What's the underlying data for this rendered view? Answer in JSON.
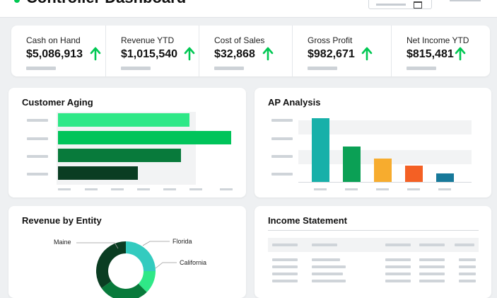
{
  "header": {
    "title": "Controller Dashboard"
  },
  "kpis": [
    {
      "label": "Cash on Hand",
      "value": "$5,086,913"
    },
    {
      "label": "Revenue YTD",
      "value": "$1,015,540"
    },
    {
      "label": "Cost of Sales",
      "value": "$32,868"
    },
    {
      "label": "Gross Profit",
      "value": "$982,671"
    },
    {
      "label": "Net Income YTD",
      "value": "$815,481"
    }
  ],
  "customer_aging": {
    "title": "Customer Aging",
    "bars": [
      {
        "value": 0.76,
        "color": "#2fe887"
      },
      {
        "value": 1.0,
        "color": "#00c45a"
      },
      {
        "value": 0.71,
        "color": "#087a3b"
      },
      {
        "value": 0.46,
        "color": "#0a3d22"
      }
    ]
  },
  "ap_analysis": {
    "title": "AP Analysis",
    "bars": [
      {
        "value": 1.0,
        "color": "#17b0a9"
      },
      {
        "value": 0.55,
        "color": "#0ba055"
      },
      {
        "value": 0.37,
        "color": "#f7ac2e"
      },
      {
        "value": 0.25,
        "color": "#f46024"
      },
      {
        "value": 0.13,
        "color": "#17799a"
      }
    ]
  },
  "revenue_by_entity": {
    "title": "Revenue by Entity",
    "labels": [
      "Maine",
      "Florida",
      "California"
    ],
    "colors": {
      "maine": "#0a3d22",
      "florida": "#33cbbf",
      "california": "#2fe887",
      "other": "#087a3b"
    }
  },
  "income_statement": {
    "title": "Income Statement"
  },
  "colors": {
    "accent": "#00c853",
    "trend_up": "#00c853"
  },
  "icons": {
    "kpi_trend": "arrow-up-icon",
    "date": "calendar-icon"
  }
}
